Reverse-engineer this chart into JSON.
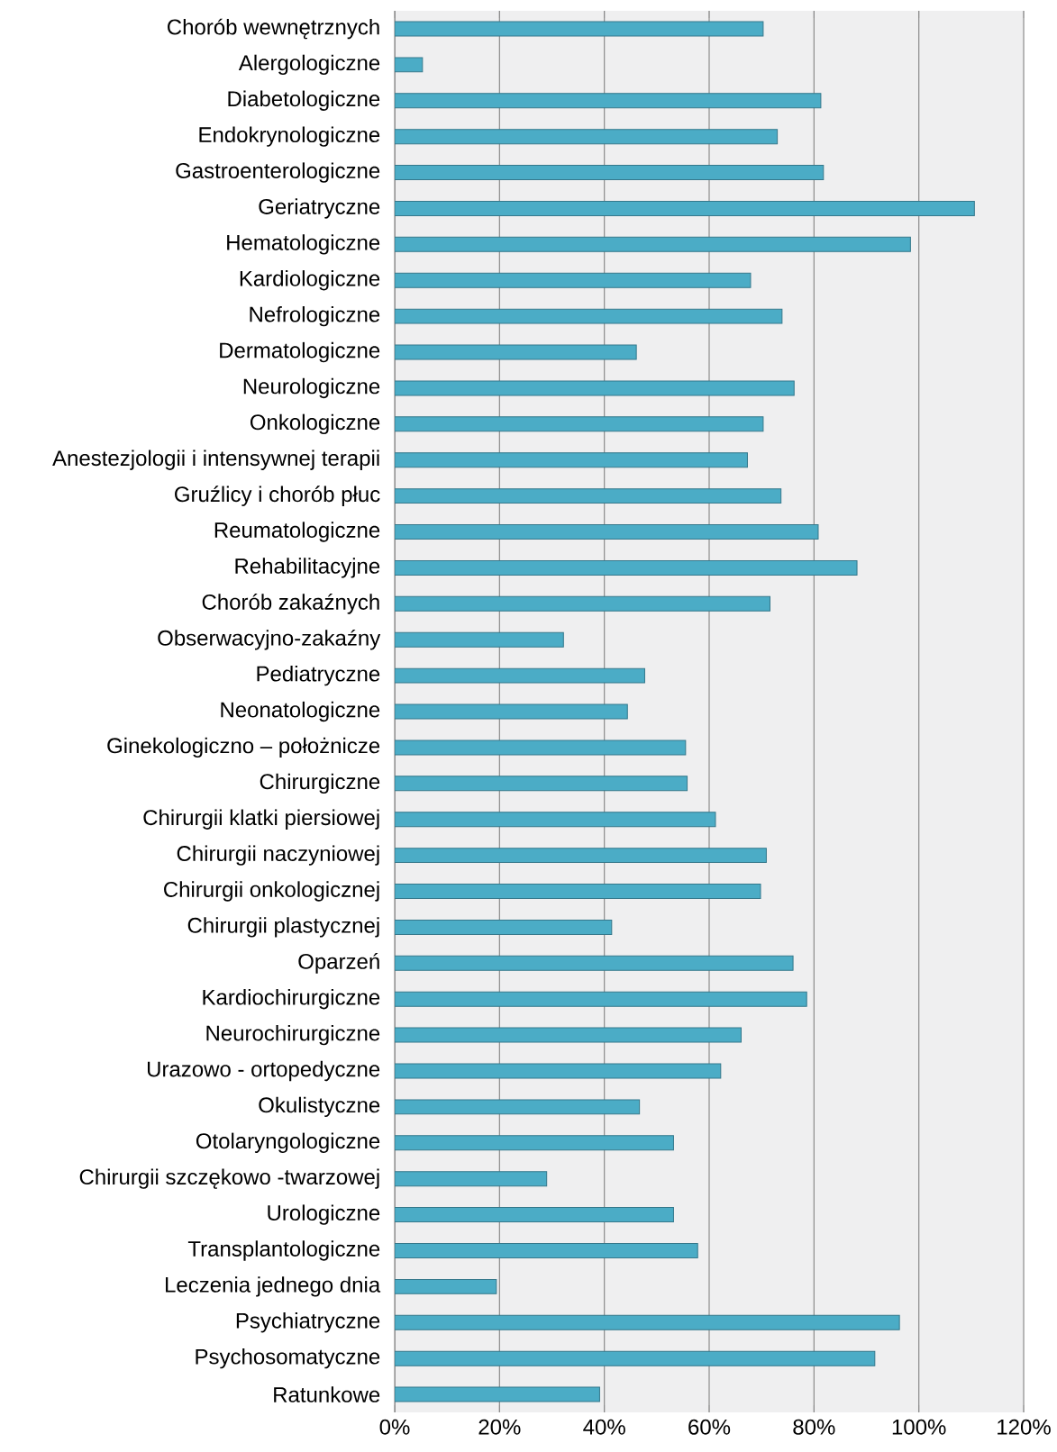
{
  "chart_data": {
    "type": "bar",
    "orientation": "horizontal",
    "color": "#4bacc6",
    "categories": [
      "Chorób wewnętrznych",
      "Alergologiczne",
      "Diabetologiczne",
      "Endokrynologiczne",
      "Gastroenterologiczne",
      "Geriatryczne",
      "Hematologiczne",
      "Kardiologiczne",
      "Nefrologiczne",
      "Dermatologiczne",
      "Neurologiczne",
      "Onkologiczne",
      "Anestezjologii i intensywnej terapii",
      "Gruźlicy i chorób płuc",
      "Reumatologiczne",
      "Rehabilitacyjne",
      "Chorób zakaźnych",
      "Obserwacyjno-zakaźny",
      "Pediatryczne",
      "Neonatologiczne",
      "Ginekologiczno – położnicze",
      "Chirurgiczne",
      "Chirurgii klatki piersiowej",
      "Chirurgii naczyniowej",
      "Chirurgii onkologicznej",
      "Chirurgii plastycznej",
      "Oparzeń",
      "Kardiochirurgiczne",
      "Neurochirurgiczne",
      "Urazowo - ortopedyczne",
      "Okulistyczne",
      "Otolaryngologiczne",
      "Chirurgii szczękowo -twarzowej",
      "Urologiczne",
      "Transplantologiczne",
      "Leczenia jednego dnia",
      "Psychiatryczne",
      "Psychosomatyczne",
      "Ratunkowe"
    ],
    "values": [
      70.3,
      5.3,
      81.3,
      73.0,
      81.8,
      110.6,
      98.4,
      67.9,
      73.9,
      46.1,
      76.2,
      70.3,
      67.3,
      73.7,
      80.8,
      88.2,
      71.6,
      32.2,
      47.7,
      44.4,
      55.5,
      55.8,
      61.2,
      70.9,
      69.8,
      41.4,
      76.0,
      78.6,
      66.1,
      62.2,
      46.7,
      53.2,
      29.0,
      53.2,
      57.8,
      19.4,
      96.3,
      91.6,
      39.1
    ],
    "xlim": [
      0,
      120
    ],
    "xticks": [
      {
        "value": 0,
        "label": "0%"
      },
      {
        "value": 20,
        "label": "20%"
      },
      {
        "value": 40,
        "label": "40%"
      },
      {
        "value": 60,
        "label": "60%"
      },
      {
        "value": 80,
        "label": "80%"
      },
      {
        "value": 100,
        "label": "100%"
      },
      {
        "value": 120,
        "label": "120%"
      }
    ],
    "grid": "x"
  }
}
